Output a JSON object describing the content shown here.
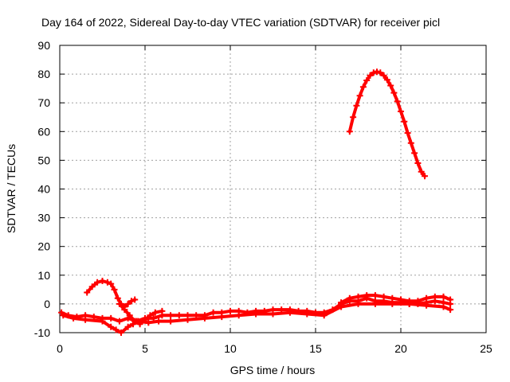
{
  "chart_data": {
    "type": "scatter",
    "title": "Day 164 of 2022, Sidereal Day-to-day VTEC variation (SDTVAR) for receiver picl",
    "xlabel": "GPS time / hours",
    "ylabel": "SDTVAR / TECUs",
    "xlim": [
      0,
      25
    ],
    "ylim": [
      -10,
      90
    ],
    "xticks": [
      "0",
      "5",
      "10",
      "15",
      "20",
      "25"
    ],
    "yticks": [
      "-10",
      "0",
      "10",
      "20",
      "30",
      "40",
      "50",
      "60",
      "70",
      "80",
      "90"
    ],
    "grid": true,
    "marker": "plus",
    "series_color": "#ff0000",
    "series": [
      {
        "name": "baseline-track",
        "x": [
          0.1,
          0.5,
          1.0,
          1.5,
          2.0,
          2.5,
          3.0,
          3.5,
          4.0,
          4.5,
          5.0,
          5.5,
          6.0,
          6.5,
          7.0,
          7.5,
          8.0,
          8.5,
          9.0,
          9.5,
          10.0,
          10.5,
          11.0,
          11.5,
          12.0,
          12.5,
          13.0,
          13.5,
          14.0,
          14.5,
          15.0,
          15.5,
          16.0,
          16.5,
          17.0,
          17.5,
          18.0,
          18.5,
          19.0,
          19.5,
          20.0,
          20.5,
          21.0,
          21.5,
          22.0,
          22.5,
          22.9
        ],
        "y": [
          -3,
          -4,
          -4.5,
          -4,
          -4.5,
          -5,
          -5,
          -6,
          -5,
          -6,
          -5,
          -5,
          -4,
          -4,
          -4,
          -4,
          -4,
          -4,
          -3,
          -3,
          -2.5,
          -2.5,
          -3,
          -2.5,
          -2.5,
          -2,
          -2,
          -2,
          -2.5,
          -2.5,
          -3,
          -3,
          -2,
          0,
          1,
          1,
          2,
          1,
          1,
          0.5,
          0.5,
          0,
          0,
          0.5,
          1,
          0.5,
          0
        ]
      },
      {
        "name": "lower-spread",
        "x": [
          0.2,
          0.8,
          1.5,
          2.5,
          3.0,
          3.3,
          3.6,
          4.0,
          4.3,
          4.6,
          5.2,
          5.8,
          6.5,
          7.5,
          8.5,
          9.5,
          10.5,
          11.5,
          12.5,
          13.5,
          14.5,
          15.5,
          16.5,
          17.5,
          18.5,
          19.5,
          20.5,
          21.5,
          22.5,
          22.9
        ],
        "y": [
          -4,
          -5,
          -5.5,
          -6,
          -8,
          -9,
          -10,
          -8,
          -7,
          -6,
          -6.5,
          -6,
          -6,
          -5.5,
          -5,
          -4.5,
          -4,
          -3.5,
          -3.5,
          -3,
          -3.5,
          -4,
          -1,
          0,
          0,
          0,
          0,
          -0.5,
          -1,
          -2
        ]
      },
      {
        "name": "upper-spread",
        "x": [
          16.5,
          17.0,
          17.5,
          18.0,
          18.5,
          19.0,
          19.5,
          20.0,
          20.5,
          21.0,
          21.5,
          22.0,
          22.5,
          22.9
        ],
        "y": [
          0.5,
          2,
          2.5,
          3,
          3,
          2.5,
          2,
          1.5,
          1,
          1,
          2,
          2.5,
          2.5,
          1.5
        ]
      },
      {
        "name": "morning-arc",
        "x": [
          1.6,
          1.9,
          2.2,
          2.5,
          2.8,
          3.0,
          3.2,
          3.4,
          3.6,
          3.8,
          4.0,
          4.2,
          4.4
        ],
        "y": [
          4,
          6,
          7.5,
          8,
          7.5,
          7,
          5,
          2,
          0,
          -1,
          0,
          1,
          1.5
        ]
      },
      {
        "name": "crossing-tracks",
        "x": [
          3.5,
          3.8,
          4.1,
          4.4,
          4.7,
          5.0,
          5.3,
          5.6,
          6.0
        ],
        "y": [
          0,
          -2,
          -4,
          -6,
          -7,
          -5.5,
          -4,
          -3,
          -2.5
        ]
      },
      {
        "name": "evening-arc",
        "x": [
          17.0,
          17.2,
          17.4,
          17.6,
          17.8,
          18.0,
          18.2,
          18.4,
          18.6,
          18.8,
          19.0,
          19.2,
          19.4,
          19.6,
          19.8,
          20.0,
          20.2,
          20.4,
          20.6,
          20.8,
          21.0,
          21.2,
          21.4
        ],
        "y": [
          60,
          65,
          69,
          72.5,
          75.5,
          77.8,
          79.5,
          80.5,
          80.8,
          80.5,
          79.5,
          78,
          76,
          73.5,
          70.5,
          67,
          63.5,
          59.5,
          56,
          52.5,
          49,
          46,
          44.5
        ]
      }
    ]
  }
}
